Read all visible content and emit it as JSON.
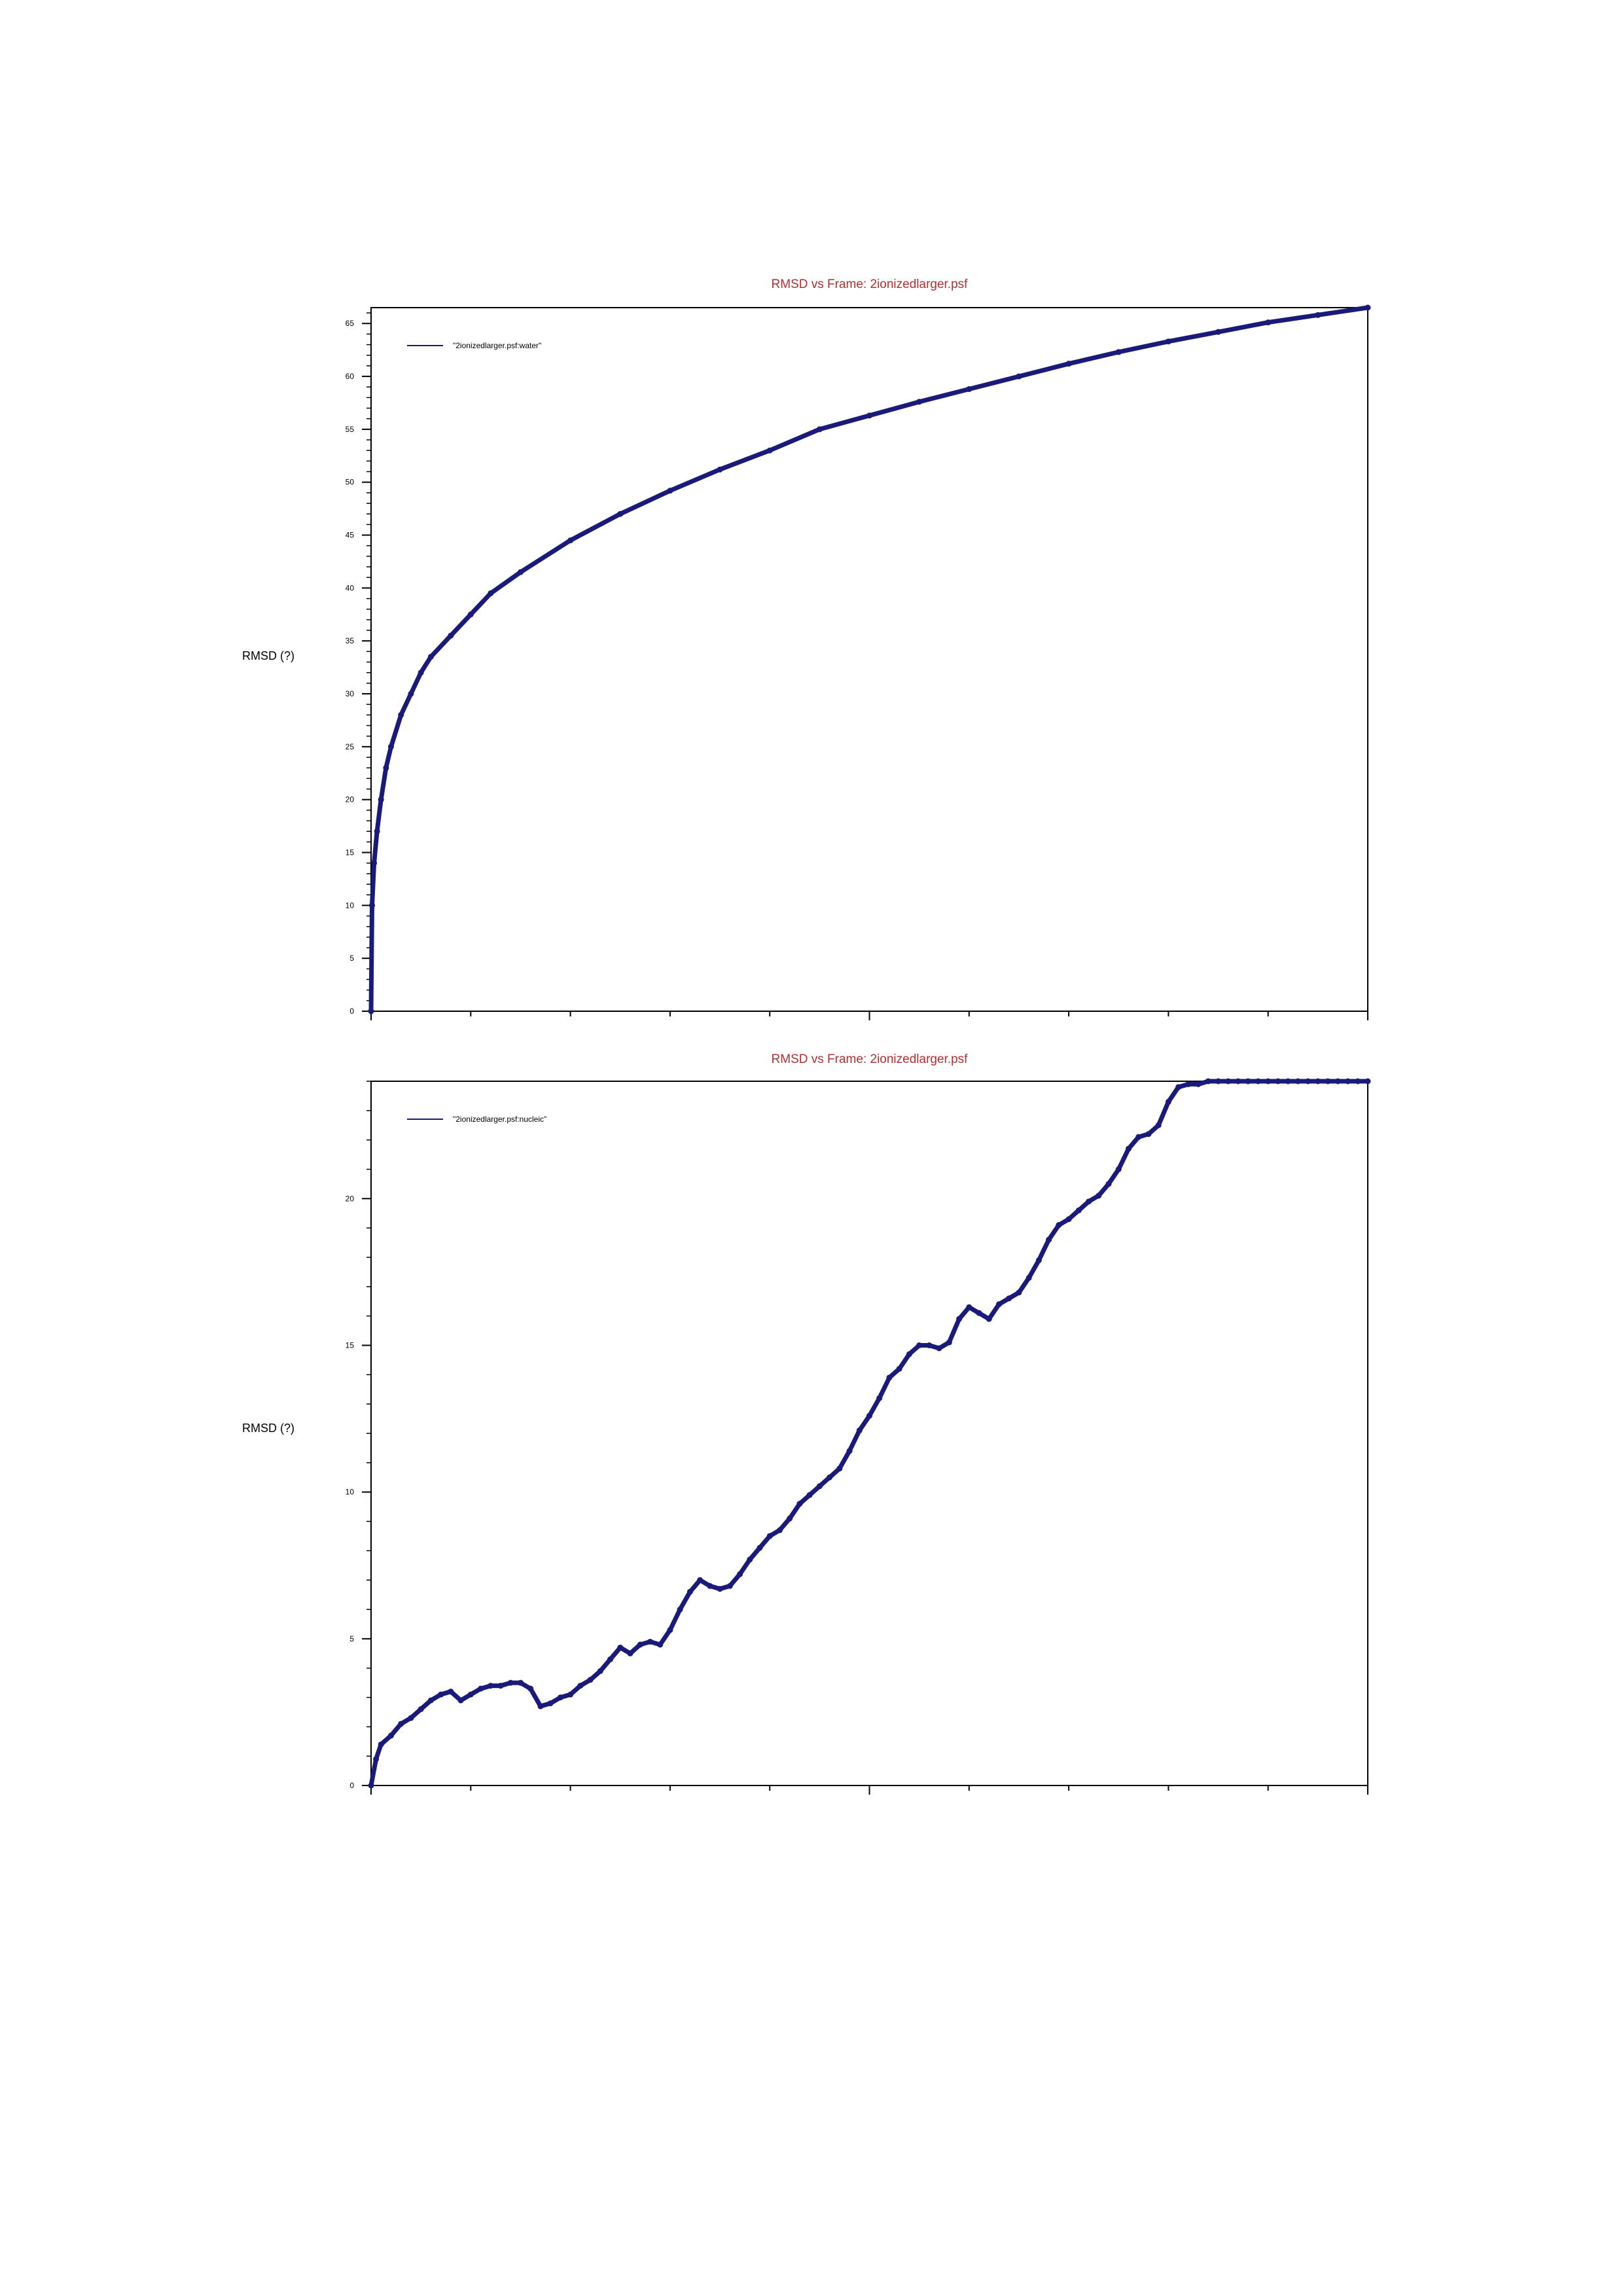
{
  "chart_data": [
    {
      "type": "line",
      "title": "RMSD vs Frame: 2ionizedlarger.psf",
      "xlabel": "",
      "ylabel": "RMSD (?)",
      "ylim": [
        0,
        66.5
      ],
      "xlim": [
        0,
        1
      ],
      "yticks": [
        0,
        5,
        10,
        15,
        20,
        25,
        30,
        35,
        40,
        45,
        50,
        55,
        60,
        65
      ],
      "ytick_labels": [
        "0",
        "5",
        "10",
        "15",
        "20",
        "25",
        "30",
        "35",
        "40",
        "45",
        "50",
        "55",
        "60",
        "65"
      ],
      "grid": false,
      "legend": "top-left",
      "series": [
        {
          "name": "\"2ionizedlarger.psf:water\"",
          "color": "#1a1a7a",
          "x": [
            0,
            0.001,
            0.003,
            0.006,
            0.01,
            0.015,
            0.02,
            0.03,
            0.04,
            0.05,
            0.06,
            0.08,
            0.1,
            0.12,
            0.15,
            0.2,
            0.25,
            0.3,
            0.35,
            0.4,
            0.45,
            0.5,
            0.55,
            0.6,
            0.65,
            0.7,
            0.75,
            0.8,
            0.85,
            0.9,
            0.95,
            1.0
          ],
          "y": [
            0,
            10,
            14,
            17,
            20,
            23,
            25,
            28,
            30,
            32,
            33.5,
            35.5,
            37.5,
            39.5,
            41.5,
            44.5,
            47,
            49.2,
            51.2,
            53,
            55,
            56.3,
            57.6,
            58.8,
            60,
            61.2,
            62.3,
            63.3,
            64.2,
            65.1,
            65.8,
            66.5
          ]
        }
      ]
    },
    {
      "type": "line",
      "title": "RMSD vs Frame: 2ionizedlarger.psf",
      "xlabel": "",
      "ylabel": "RMSD (?)",
      "ylim": [
        0,
        24
      ],
      "xlim": [
        0,
        1
      ],
      "yticks": [
        0,
        5,
        10,
        15,
        20
      ],
      "ytick_labels": [
        "0",
        "5",
        "10",
        "15",
        "20"
      ],
      "grid": false,
      "legend": "top-left",
      "series": [
        {
          "name": "\"2ionizedlarger.psf:nucleic\"",
          "color": "#1a1a7a",
          "x": [
            0,
            0.005,
            0.01,
            0.02,
            0.03,
            0.04,
            0.05,
            0.06,
            0.07,
            0.08,
            0.09,
            0.1,
            0.11,
            0.12,
            0.13,
            0.14,
            0.15,
            0.16,
            0.17,
            0.18,
            0.19,
            0.2,
            0.21,
            0.22,
            0.23,
            0.24,
            0.25,
            0.26,
            0.27,
            0.28,
            0.29,
            0.3,
            0.31,
            0.32,
            0.33,
            0.34,
            0.35,
            0.36,
            0.37,
            0.38,
            0.39,
            0.4,
            0.41,
            0.42,
            0.43,
            0.44,
            0.45,
            0.46,
            0.47,
            0.48,
            0.49,
            0.5,
            0.51,
            0.52,
            0.53,
            0.54,
            0.55,
            0.56,
            0.57,
            0.58,
            0.59,
            0.6,
            0.61,
            0.62,
            0.63,
            0.64,
            0.65,
            0.66,
            0.67,
            0.68,
            0.69,
            0.7,
            0.71,
            0.72,
            0.73,
            0.74,
            0.75,
            0.76,
            0.77,
            0.78,
            0.79,
            0.8,
            0.81,
            0.82,
            0.83,
            0.84,
            0.85,
            0.86,
            0.87,
            0.88,
            0.89,
            0.9,
            0.91,
            0.92,
            0.93,
            0.94,
            0.95,
            0.96,
            0.97,
            0.98,
            0.99,
            1.0
          ],
          "y": [
            0,
            0.9,
            1.4,
            1.7,
            2.1,
            2.3,
            2.6,
            2.9,
            3.1,
            3.2,
            2.9,
            3.1,
            3.3,
            3.4,
            3.4,
            3.5,
            3.5,
            3.3,
            2.7,
            2.8,
            3.0,
            3.1,
            3.4,
            3.6,
            3.9,
            4.3,
            4.7,
            4.5,
            4.8,
            4.9,
            4.8,
            5.3,
            6.0,
            6.6,
            7.0,
            6.8,
            6.7,
            6.8,
            7.2,
            7.7,
            8.1,
            8.5,
            8.7,
            9.1,
            9.6,
            9.9,
            10.2,
            10.5,
            10.8,
            11.4,
            12.1,
            12.6,
            13.2,
            13.9,
            14.2,
            14.7,
            15.0,
            15.0,
            14.9,
            15.1,
            15.9,
            16.3,
            16.1,
            15.9,
            16.4,
            16.6,
            16.8,
            17.3,
            17.9,
            18.6,
            19.1,
            19.3,
            19.6,
            19.9,
            20.1,
            20.5,
            21.0,
            21.7,
            22.1,
            22.2,
            22.5,
            23.3,
            23.8,
            23.9,
            23.9,
            24.0,
            24.0,
            24.0,
            24.0,
            24.0,
            24.0,
            24.0,
            24.0,
            24.0,
            24.0,
            24.0,
            24.0,
            24.0,
            24.0,
            24.0,
            24.0,
            24.0
          ]
        }
      ]
    }
  ]
}
